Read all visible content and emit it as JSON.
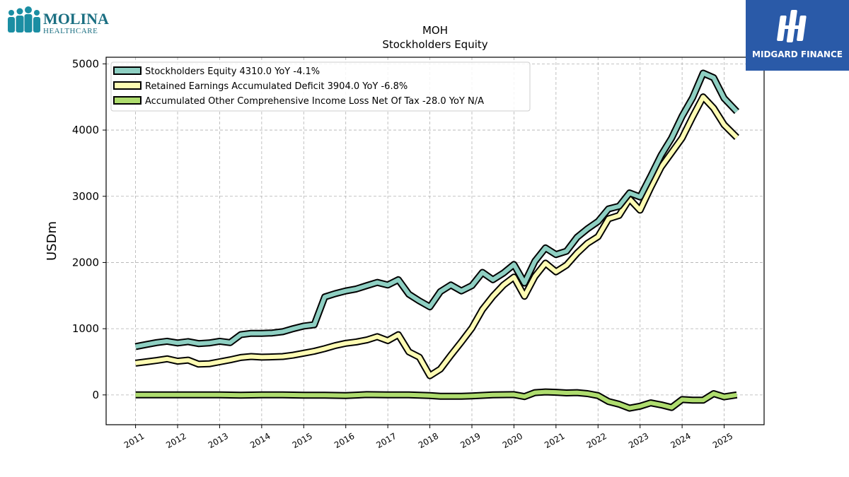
{
  "logos": {
    "left_name": "MOLINA",
    "left_sub": "HEALTHCARE",
    "right_name": "MIDGARD FINANCE"
  },
  "chart_data": {
    "type": "line",
    "title": "MOH",
    "subtitle": "Stockholders  Equity",
    "ylabel": "USDm",
    "xlabel": "",
    "ylim": [
      -450,
      5100
    ],
    "xlim": [
      2010.3,
      2025.95
    ],
    "yticks": [
      0,
      1000,
      2000,
      3000,
      4000,
      5000
    ],
    "xticks": [
      "2011",
      "2012",
      "2013",
      "2014",
      "2015",
      "2016",
      "2017",
      "2018",
      "2019",
      "2020",
      "2021",
      "2022",
      "2023",
      "2024",
      "2025"
    ],
    "grid": true,
    "legend_position": "top-left",
    "series": [
      {
        "name": "Stockholders Equity  4310.0 YoY -4.1%",
        "color": "#8ecfc2",
        "points": [
          [
            2011.0,
            730
          ],
          [
            2011.25,
            760
          ],
          [
            2011.5,
            790
          ],
          [
            2011.75,
            810
          ],
          [
            2012.0,
            785
          ],
          [
            2012.25,
            805
          ],
          [
            2012.5,
            775
          ],
          [
            2012.75,
            785
          ],
          [
            2013.0,
            810
          ],
          [
            2013.25,
            790
          ],
          [
            2013.5,
            910
          ],
          [
            2013.75,
            930
          ],
          [
            2014.0,
            930
          ],
          [
            2014.25,
            935
          ],
          [
            2014.5,
            955
          ],
          [
            2014.75,
            1000
          ],
          [
            2015.0,
            1040
          ],
          [
            2015.25,
            1060
          ],
          [
            2015.5,
            1480
          ],
          [
            2015.75,
            1530
          ],
          [
            2016.0,
            1570
          ],
          [
            2016.25,
            1600
          ],
          [
            2016.5,
            1650
          ],
          [
            2016.75,
            1700
          ],
          [
            2017.0,
            1660
          ],
          [
            2017.25,
            1740
          ],
          [
            2017.5,
            1520
          ],
          [
            2017.75,
            1420
          ],
          [
            2018.0,
            1330
          ],
          [
            2018.25,
            1560
          ],
          [
            2018.5,
            1660
          ],
          [
            2018.75,
            1570
          ],
          [
            2019.0,
            1650
          ],
          [
            2019.25,
            1850
          ],
          [
            2019.5,
            1740
          ],
          [
            2019.75,
            1840
          ],
          [
            2020.0,
            1970
          ],
          [
            2020.25,
            1690
          ],
          [
            2020.5,
            2020
          ],
          [
            2020.75,
            2220
          ],
          [
            2021.0,
            2120
          ],
          [
            2021.25,
            2170
          ],
          [
            2021.5,
            2380
          ],
          [
            2021.75,
            2510
          ],
          [
            2022.0,
            2620
          ],
          [
            2022.25,
            2810
          ],
          [
            2022.5,
            2850
          ],
          [
            2022.75,
            3050
          ],
          [
            2023.0,
            2990
          ],
          [
            2023.25,
            3300
          ],
          [
            2023.5,
            3620
          ],
          [
            2023.75,
            3880
          ],
          [
            2024.0,
            4210
          ],
          [
            2024.25,
            4490
          ],
          [
            2024.5,
            4860
          ],
          [
            2024.75,
            4790
          ],
          [
            2025.0,
            4480
          ],
          [
            2025.3,
            4280
          ]
        ]
      },
      {
        "name": "Retained Earnings Accumulated Deficit  3904.0 YoY -6.8%",
        "color": "#fdfbb3",
        "points": [
          [
            2011.0,
            480
          ],
          [
            2011.25,
            500
          ],
          [
            2011.5,
            520
          ],
          [
            2011.75,
            545
          ],
          [
            2012.0,
            510
          ],
          [
            2012.25,
            525
          ],
          [
            2012.5,
            465
          ],
          [
            2012.75,
            470
          ],
          [
            2013.0,
            500
          ],
          [
            2013.25,
            530
          ],
          [
            2013.5,
            565
          ],
          [
            2013.75,
            580
          ],
          [
            2014.0,
            570
          ],
          [
            2014.25,
            575
          ],
          [
            2014.5,
            580
          ],
          [
            2014.75,
            600
          ],
          [
            2015.0,
            630
          ],
          [
            2015.25,
            660
          ],
          [
            2015.5,
            700
          ],
          [
            2015.75,
            745
          ],
          [
            2016.0,
            780
          ],
          [
            2016.25,
            800
          ],
          [
            2016.5,
            830
          ],
          [
            2016.75,
            880
          ],
          [
            2017.0,
            820
          ],
          [
            2017.25,
            910
          ],
          [
            2017.5,
            650
          ],
          [
            2017.75,
            570
          ],
          [
            2018.0,
            290
          ],
          [
            2018.25,
            390
          ],
          [
            2018.5,
            600
          ],
          [
            2018.75,
            800
          ],
          [
            2019.0,
            1010
          ],
          [
            2019.25,
            1290
          ],
          [
            2019.5,
            1490
          ],
          [
            2019.75,
            1660
          ],
          [
            2020.0,
            1780
          ],
          [
            2020.25,
            1490
          ],
          [
            2020.5,
            1790
          ],
          [
            2020.75,
            1990
          ],
          [
            2021.0,
            1860
          ],
          [
            2021.25,
            1960
          ],
          [
            2021.5,
            2140
          ],
          [
            2021.75,
            2290
          ],
          [
            2022.0,
            2390
          ],
          [
            2022.25,
            2660
          ],
          [
            2022.5,
            2710
          ],
          [
            2022.75,
            2960
          ],
          [
            2023.0,
            2790
          ],
          [
            2023.25,
            3130
          ],
          [
            2023.5,
            3440
          ],
          [
            2023.75,
            3660
          ],
          [
            2024.0,
            3880
          ],
          [
            2024.25,
            4200
          ],
          [
            2024.5,
            4500
          ],
          [
            2024.75,
            4330
          ],
          [
            2025.0,
            4080
          ],
          [
            2025.3,
            3890
          ]
        ]
      },
      {
        "name": "Accumulated Other Comprehensive Income Loss Net Of Tax  -28.0 YoY N/A",
        "color": "#aedc6e",
        "points": [
          [
            2011.0,
            0
          ],
          [
            2011.5,
            0
          ],
          [
            2012.0,
            0
          ],
          [
            2012.5,
            0
          ],
          [
            2013.0,
            0
          ],
          [
            2013.5,
            -5
          ],
          [
            2014.0,
            0
          ],
          [
            2014.5,
            0
          ],
          [
            2015.0,
            -5
          ],
          [
            2015.5,
            -5
          ],
          [
            2016.0,
            -10
          ],
          [
            2016.5,
            5
          ],
          [
            2017.0,
            0
          ],
          [
            2017.5,
            0
          ],
          [
            2018.0,
            -10
          ],
          [
            2018.25,
            -20
          ],
          [
            2018.75,
            -20
          ],
          [
            2019.0,
            -15
          ],
          [
            2019.5,
            0
          ],
          [
            2020.0,
            5
          ],
          [
            2020.25,
            -25
          ],
          [
            2020.5,
            35
          ],
          [
            2020.75,
            45
          ],
          [
            2021.0,
            40
          ],
          [
            2021.25,
            30
          ],
          [
            2021.5,
            35
          ],
          [
            2021.75,
            20
          ],
          [
            2022.0,
            -10
          ],
          [
            2022.25,
            -100
          ],
          [
            2022.5,
            -140
          ],
          [
            2022.75,
            -200
          ],
          [
            2023.0,
            -170
          ],
          [
            2023.25,
            -120
          ],
          [
            2023.5,
            -150
          ],
          [
            2023.75,
            -190
          ],
          [
            2024.0,
            -70
          ],
          [
            2024.25,
            -80
          ],
          [
            2024.5,
            -80
          ],
          [
            2024.75,
            20
          ],
          [
            2025.0,
            -30
          ],
          [
            2025.3,
            0
          ]
        ]
      }
    ]
  }
}
